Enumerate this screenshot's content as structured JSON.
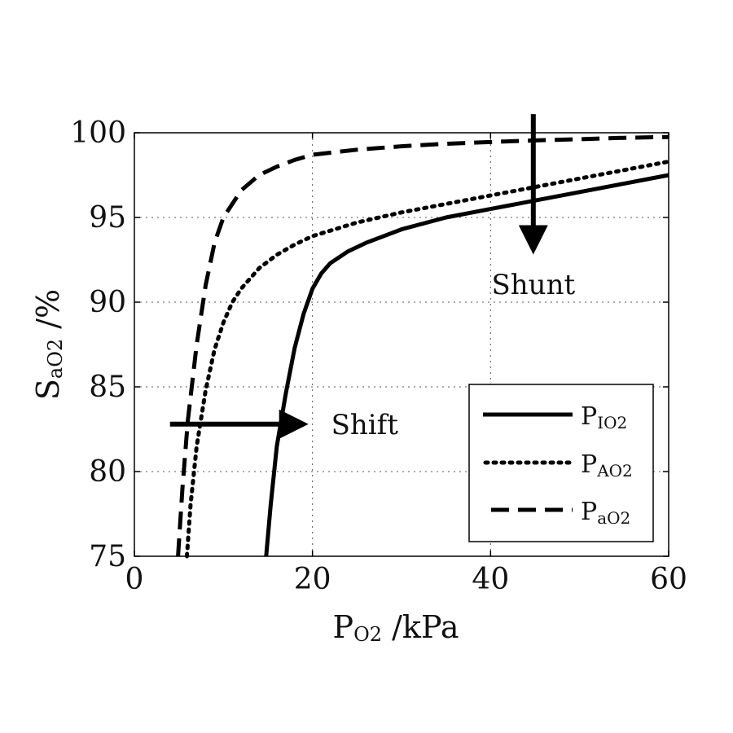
{
  "chart_data": {
    "type": "line",
    "xlabel": {
      "main": "P",
      "sub": "O2",
      "unit": " /kPa"
    },
    "ylabel": {
      "main": "S",
      "sub": "aO2",
      "unit": " /%"
    },
    "xlim": [
      0,
      60
    ],
    "ylim": [
      75,
      100
    ],
    "xticks": [
      0,
      20,
      40,
      60
    ],
    "yticks": [
      75,
      80,
      85,
      90,
      95,
      100
    ],
    "grid": true,
    "legend_position": "bottom-right",
    "series": [
      {
        "name": {
          "main": "P",
          "sub": "IO2"
        },
        "style": "solid",
        "x": [
          14.8,
          15.3,
          16.0,
          17.0,
          18.0,
          19.0,
          20.0,
          21.0,
          22.0,
          24.0,
          26.0,
          28.0,
          30.0,
          35.0,
          40.0,
          45.0,
          50.0,
          55.0,
          60.0
        ],
        "y": [
          75.0,
          78.0,
          81.5,
          84.6,
          87.3,
          89.3,
          90.8,
          91.7,
          92.3,
          93.0,
          93.5,
          93.9,
          94.3,
          95.0,
          95.5,
          96.0,
          96.5,
          97.0,
          97.5
        ]
      },
      {
        "name": {
          "main": "P",
          "sub": "AO2"
        },
        "style": "dotted",
        "x": [
          5.9,
          6.3,
          7.0,
          8.0,
          9.0,
          10.0,
          11.0,
          12.0,
          14.0,
          16.0,
          18.0,
          20.0,
          25.0,
          30.0,
          35.0,
          40.0,
          45.0,
          50.0,
          55.0,
          60.0
        ],
        "y": [
          75.0,
          78.0,
          81.5,
          84.8,
          87.2,
          88.8,
          90.0,
          90.8,
          92.0,
          92.8,
          93.4,
          93.9,
          94.7,
          95.3,
          95.8,
          96.3,
          96.8,
          97.3,
          97.8,
          98.3
        ]
      },
      {
        "name": {
          "main": "P",
          "sub": "aO2"
        },
        "style": "dashed",
        "x": [
          4.9,
          5.4,
          6.0,
          7.0,
          8.0,
          9.0,
          10.0,
          12.0,
          14.0,
          16.0,
          18.0,
          20.0,
          25.0,
          30.0,
          35.0,
          40.0,
          45.0,
          50.0,
          55.0,
          60.0
        ],
        "y": [
          75.0,
          79.0,
          83.0,
          87.5,
          91.0,
          93.5,
          95.0,
          96.6,
          97.5,
          98.0,
          98.4,
          98.7,
          99.0,
          99.2,
          99.35,
          99.45,
          99.55,
          99.62,
          99.7,
          99.75
        ]
      }
    ],
    "annotations": [
      {
        "text": "Shift",
        "arrow": {
          "from": [
            4.0,
            82.8
          ],
          "to": [
            19.0,
            82.8
          ]
        },
        "label_at": [
          21.0,
          82.8
        ]
      },
      {
        "text": "Shunt",
        "arrow": {
          "from": [
            44.8,
            101.1
          ],
          "to": [
            44.8,
            93.1
          ]
        },
        "label_at": [
          44.8,
          92.4
        ]
      }
    ]
  }
}
